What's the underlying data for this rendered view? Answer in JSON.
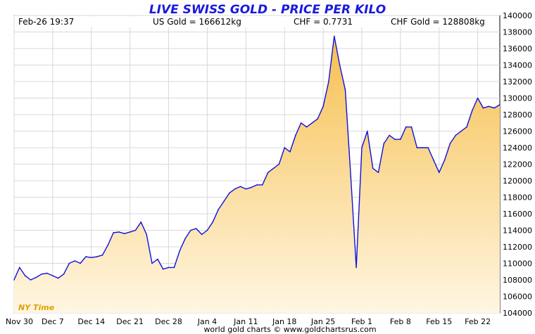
{
  "header": {
    "timestamp": "Feb-26  19:37",
    "us_gold": "US Gold = 166612kg",
    "chf_rate": "CHF = 0.7731",
    "chf_gold": "CHF Gold = 128808kg"
  },
  "footer": {
    "credit": "world gold charts © www.goldchartsrus.com",
    "timezone": "NY Time"
  },
  "colors": {
    "line": "#1010e0",
    "fill_top": "#f8c860",
    "fill_bottom": "#fff4dc",
    "grid": "#d8d8d8"
  },
  "chart_data": {
    "type": "area",
    "title": "LIVE SWISS GOLD - PRICE PER KILO",
    "xlabel": "",
    "ylabel": "",
    "ylim": [
      104000,
      140000
    ],
    "yticks": [
      104000,
      106000,
      108000,
      110000,
      112000,
      114000,
      116000,
      118000,
      120000,
      122000,
      124000,
      126000,
      128000,
      130000,
      132000,
      134000,
      136000,
      138000,
      140000
    ],
    "xticks": [
      "Nov 30",
      "Dec 7",
      "Dec 14",
      "Dec 21",
      "Dec 28",
      "Jan 4",
      "Jan 11",
      "Jan 18",
      "Jan 25",
      "Feb 1",
      "Feb 8",
      "Feb 15",
      "Feb 22"
    ],
    "x_start": "Nov 30",
    "x_end": "Feb 26",
    "grid": true,
    "series": [
      {
        "x": [
          0,
          1,
          2,
          3,
          4,
          5,
          6,
          7,
          8,
          9,
          10,
          11,
          12,
          13,
          14,
          15,
          16,
          17,
          18,
          19,
          20,
          21,
          22,
          23,
          24,
          25,
          26,
          27,
          28,
          29,
          30,
          31,
          32,
          33,
          34,
          35,
          36,
          37,
          38,
          39,
          40,
          41,
          42,
          43,
          44,
          45,
          46,
          47,
          48,
          49,
          50,
          51,
          52,
          53,
          54,
          55,
          56,
          57,
          58,
          59,
          60,
          61,
          62,
          63,
          64,
          65,
          66,
          67,
          68,
          69,
          70,
          71,
          72,
          73,
          74,
          75,
          76,
          77,
          78,
          79,
          80,
          81,
          82,
          83,
          84,
          85,
          86,
          87,
          88
        ],
        "values": [
          108000,
          109500,
          108500,
          108000,
          108300,
          108700,
          108800,
          108500,
          108200,
          108700,
          110000,
          110300,
          110000,
          110800,
          110700,
          110800,
          111000,
          112200,
          113700,
          113800,
          113600,
          113800,
          114000,
          115000,
          113500,
          110000,
          110500,
          109300,
          109500,
          109500,
          111500,
          113000,
          114000,
          114200,
          113500,
          114000,
          115000,
          116500,
          117500,
          118500,
          119000,
          119300,
          119000,
          119200,
          119500,
          119500,
          121000,
          121500,
          122000,
          124000,
          123500,
          125500,
          127000,
          126500,
          127000,
          127500,
          129000,
          132000,
          137500,
          134000,
          131000,
          120500,
          109500,
          124000,
          126000,
          121500,
          121000,
          124500,
          125500,
          125000,
          125000,
          126500,
          126500,
          124000,
          124000,
          124000,
          122500,
          121000,
          122500,
          124500,
          125500,
          126000,
          126500,
          128500,
          130000,
          128800,
          129000,
          128800,
          129200
        ]
      }
    ]
  }
}
